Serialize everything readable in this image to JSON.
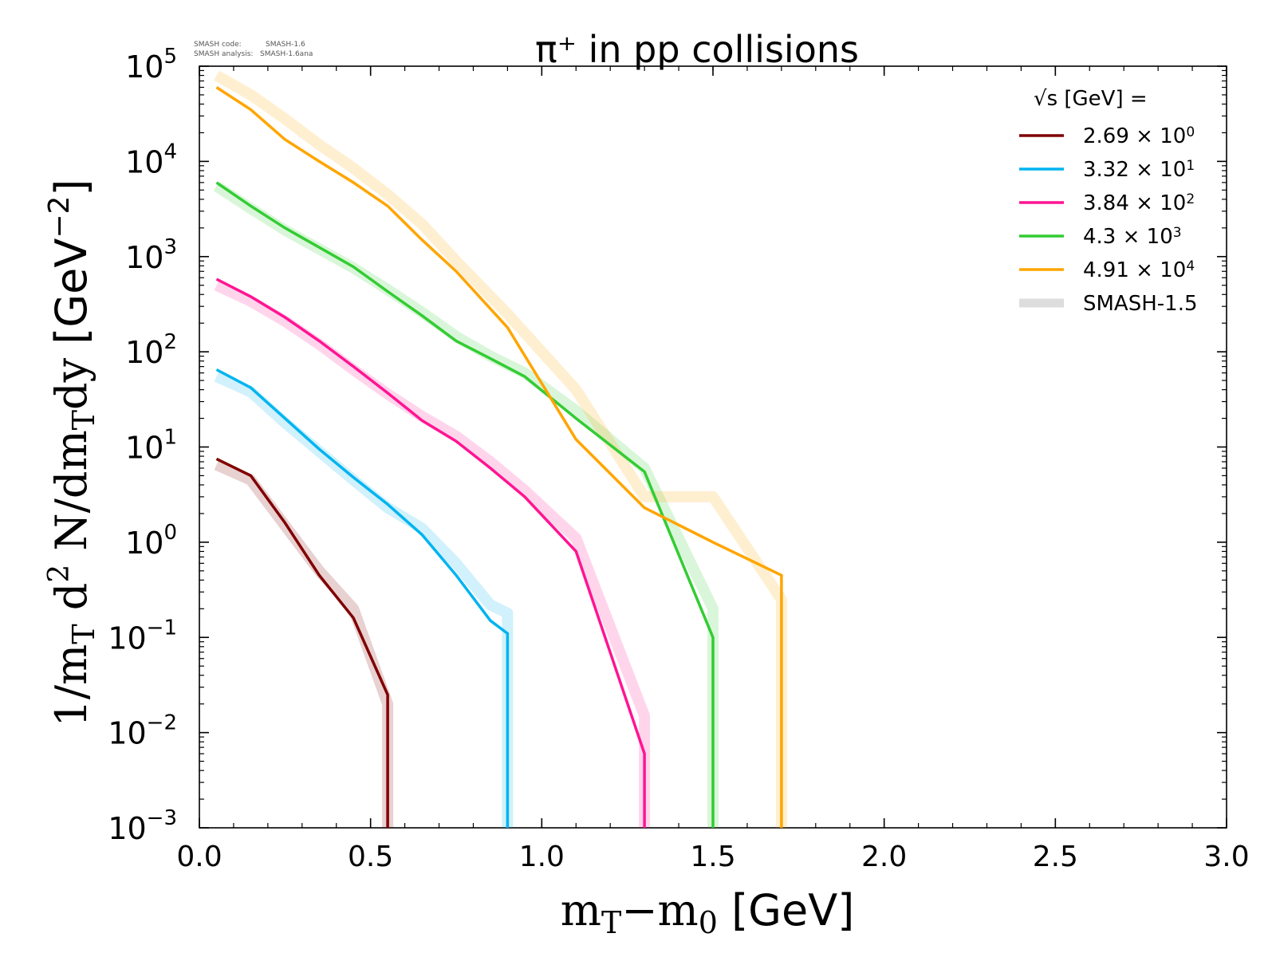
{
  "chart_data": {
    "type": "line",
    "title": "π⁺ in pp collisions",
    "watermark": {
      "code_label": "SMASH code:",
      "code_value": "SMASH-1.6",
      "analysis_label": "SMASH analysis:",
      "analysis_value": "SMASH-1.6ana"
    },
    "xlabel": "m_T−m_0 [GeV]",
    "ylabel": "1/m_T d² N/dm_Tdy [GeV⁻²]",
    "xlim": [
      0.0,
      3.0
    ],
    "ylim": [
      0.001,
      100000
    ],
    "yscale": "log",
    "grid": false,
    "legend_position": "top-right",
    "legend_title": "√s  [GeV] =",
    "xticks": [
      "0.0",
      "0.5",
      "1.0",
      "1.5",
      "2.0",
      "2.5",
      "3.0"
    ],
    "yticks": [
      {
        "base": "10",
        "exp": "5"
      },
      {
        "base": "10",
        "exp": "4"
      },
      {
        "base": "10",
        "exp": "3"
      },
      {
        "base": "10",
        "exp": "2"
      },
      {
        "base": "10",
        "exp": "1"
      },
      {
        "base": "10",
        "exp": "0"
      },
      {
        "base": "10",
        "exp": "−1"
      },
      {
        "base": "10",
        "exp": "−2"
      },
      {
        "base": "10",
        "exp": "−3"
      }
    ],
    "series": [
      {
        "name": "2.69 × 10⁰",
        "mantissa": "2.69 ×",
        "base": "10",
        "exp": "0",
        "color": "#800000",
        "x": [
          0.05,
          0.15,
          0.25,
          0.35,
          0.45,
          0.55,
          0.55
        ],
        "y": [
          7.5,
          5,
          1.6,
          0.45,
          0.16,
          0.025,
          0.001
        ],
        "ref_y": [
          6.5,
          4.5,
          1.5,
          0.5,
          0.2,
          0.02,
          0.001
        ]
      },
      {
        "name": "3.32 × 10¹",
        "mantissa": "3.32 ×",
        "base": "10",
        "exp": "1",
        "color": "#00b4f0",
        "x": [
          0.05,
          0.15,
          0.25,
          0.35,
          0.45,
          0.55,
          0.65,
          0.75,
          0.85,
          0.9,
          0.9
        ],
        "y": [
          65,
          42,
          20,
          9.5,
          4.8,
          2.5,
          1.2,
          0.45,
          0.15,
          0.11,
          0.001
        ],
        "ref_y": [
          55,
          38,
          18,
          9,
          4.5,
          2.3,
          1.4,
          0.6,
          0.22,
          0.18,
          0.001
        ]
      },
      {
        "name": "3.84 × 10²",
        "mantissa": "3.84 ×",
        "base": "10",
        "exp": "2",
        "color": "#ff1493",
        "x": [
          0.05,
          0.15,
          0.25,
          0.35,
          0.45,
          0.55,
          0.65,
          0.75,
          0.85,
          0.95,
          1.1,
          1.3,
          1.3
        ],
        "y": [
          580,
          380,
          230,
          130,
          70,
          37,
          19,
          11.5,
          6,
          3,
          0.8,
          0.006,
          0.001
        ],
        "ref_y": [
          500,
          340,
          210,
          120,
          65,
          36,
          21,
          13,
          7,
          3.5,
          1.1,
          0.015,
          0.001
        ]
      },
      {
        "name": "4.3 × 10³",
        "mantissa": "4.3 ×",
        "base": "10",
        "exp": "3",
        "color": "#33cc33",
        "x": [
          0.05,
          0.15,
          0.25,
          0.35,
          0.45,
          0.55,
          0.65,
          0.75,
          0.85,
          0.95,
          1.1,
          1.3,
          1.5,
          1.5
        ],
        "y": [
          6000,
          3400,
          2000,
          1250,
          780,
          430,
          240,
          130,
          85,
          55,
          20,
          5.5,
          0.1,
          0.001
        ],
        "ref_y": [
          5500,
          3200,
          1900,
          1200,
          760,
          450,
          260,
          145,
          90,
          60,
          24,
          6,
          0.2,
          0.001
        ]
      },
      {
        "name": "4.91 × 10⁴",
        "mantissa": "4.91 ×",
        "base": "10",
        "exp": "4",
        "color": "#ffa500",
        "x": [
          0.05,
          0.15,
          0.25,
          0.35,
          0.45,
          0.55,
          0.65,
          0.75,
          0.9,
          1.1,
          1.3,
          1.5,
          1.7,
          1.7
        ],
        "y": [
          60000,
          35000,
          17000,
          10000,
          6000,
          3400,
          1500,
          700,
          180,
          12,
          2.3,
          1,
          0.45,
          0.001
        ],
        "ref_y": [
          80000,
          50000,
          28000,
          15000,
          8500,
          4500,
          2200,
          900,
          250,
          40,
          3,
          3,
          0.25,
          0.001
        ]
      }
    ],
    "reference_series": {
      "name": "SMASH-1.5",
      "color": "#dddddd"
    }
  }
}
